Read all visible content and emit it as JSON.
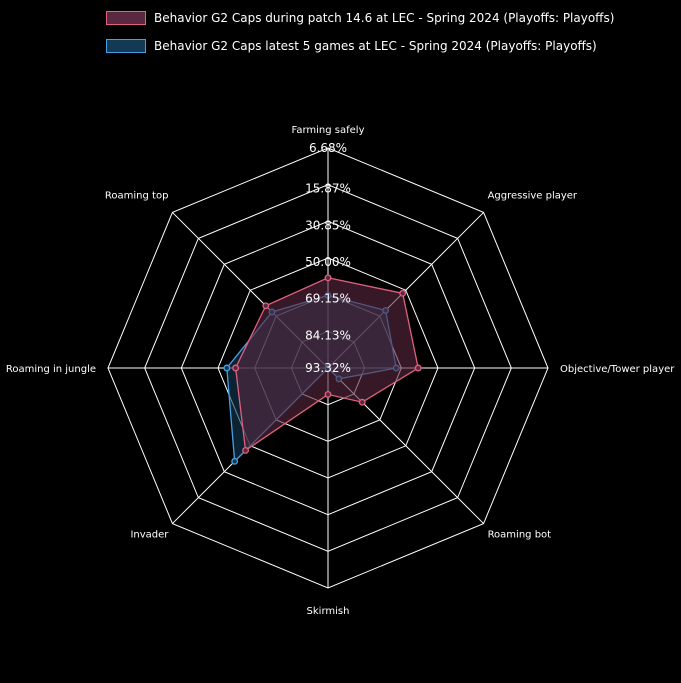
{
  "colors": {
    "background": "#000000",
    "grid": "#ffffff",
    "series1_stroke": "#e0607e",
    "series1_fill": "#5a2840",
    "series2_stroke": "#4a9fe0",
    "series2_fill": "#123a55"
  },
  "chart_data": {
    "type": "radar",
    "categories": [
      "Farming safely",
      "Aggressive player",
      "Objective/Tower player",
      "Roaming bot",
      "Skirmish",
      "Invader",
      "Roaming in jungle",
      "Roaming top"
    ],
    "tick_labels": [
      "6.68%",
      "15.87%",
      "30.85%",
      "50.00%",
      "69.15%",
      "84.13%",
      "93.32%"
    ],
    "grid": true,
    "legend_position": "top",
    "scale_note": "Outer ring = 0 (full), center = 1; each ring spans 1/6 of the radius",
    "series": [
      {
        "name": "Behavior G2 Caps during patch 14.6 at LEC - Spring 2024 (Playoffs: Playoffs)",
        "values": [
          0.59,
          0.52,
          0.59,
          0.78,
          0.88,
          0.47,
          0.58,
          0.6
        ]
      },
      {
        "name": "Behavior G2 Caps latest 5 games at LEC - Spring 2024 (Playoffs: Playoffs)",
        "values": [
          0.67,
          0.63,
          0.69,
          0.93,
          1.0,
          0.4,
          0.54,
          0.64
        ]
      }
    ]
  }
}
